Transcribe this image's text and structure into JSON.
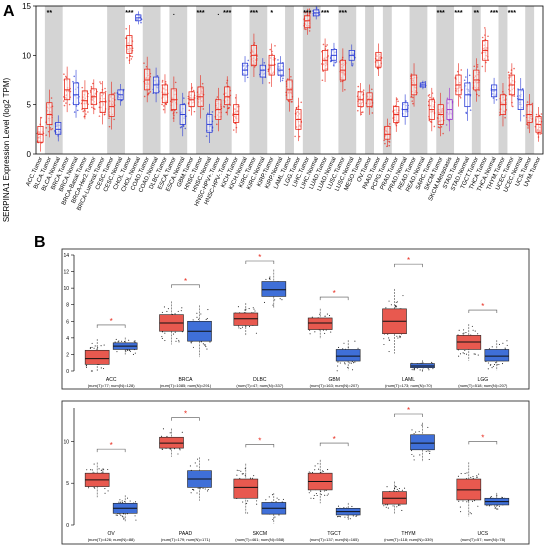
{
  "panel_a_label": "A",
  "panel_b_label": "B",
  "chart_data": [
    {
      "type": "box",
      "panel": "A",
      "title": "",
      "xlabel": "",
      "ylabel": "SERPINA1 Expression Level (log2 TPM)",
      "ylim": [
        0,
        15
      ],
      "yticks": [
        0,
        5,
        10,
        15
      ],
      "grid": false,
      "shaded_bands": true,
      "series": [
        {
          "name": "Tumor",
          "color": "#e8291c"
        },
        {
          "name": "Normal",
          "color": "#2a3cd6"
        },
        {
          "name": "Metastasis",
          "color": "#9b32d3"
        }
      ],
      "categories": [
        {
          "label": "ACC.Tumor",
          "kind": "tumor",
          "median": 2.0,
          "q1": 1.2,
          "q3": 2.8,
          "sig": ""
        },
        {
          "label": "BLCA.Tumor",
          "kind": "tumor",
          "median": 4.0,
          "q1": 3.0,
          "q3": 5.2,
          "sig": "**"
        },
        {
          "label": "BLCA.Normal",
          "kind": "normal",
          "median": 2.5,
          "q1": 2.0,
          "q3": 3.2,
          "sig": ""
        },
        {
          "label": "BRCA.Tumor",
          "kind": "tumor",
          "median": 6.5,
          "q1": 5.5,
          "q3": 7.6,
          "sig": ""
        },
        {
          "label": "BRCA.Normal",
          "kind": "normal",
          "median": 6.0,
          "q1": 5.0,
          "q3": 7.2,
          "sig": ""
        },
        {
          "label": "BRCA-Basal.Tumor",
          "kind": "tumor",
          "median": 5.4,
          "q1": 4.6,
          "q3": 6.4,
          "sig": ""
        },
        {
          "label": "BRCA-Her2.Tumor",
          "kind": "tumor",
          "median": 5.8,
          "q1": 5.0,
          "q3": 6.6,
          "sig": ""
        },
        {
          "label": "BRCA-Luminal.Tumor",
          "kind": "tumor",
          "median": 5.3,
          "q1": 4.2,
          "q3": 6.2,
          "sig": ""
        },
        {
          "label": "CESC.Tumor",
          "kind": "tumor",
          "median": 4.8,
          "q1": 3.8,
          "q3": 6.0,
          "sig": ""
        },
        {
          "label": "CESC.Normal",
          "kind": "normal",
          "median": 6.0,
          "q1": 5.5,
          "q3": 6.5,
          "sig": ""
        },
        {
          "label": "CHOL.Tumor",
          "kind": "tumor",
          "median": 11.0,
          "q1": 10.2,
          "q3": 12.0,
          "sig": "***"
        },
        {
          "label": "CHOL.Normal",
          "kind": "normal",
          "median": 13.8,
          "q1": 13.5,
          "q3": 14.1,
          "sig": ""
        },
        {
          "label": "COAD.Tumor",
          "kind": "tumor",
          "median": 7.5,
          "q1": 6.5,
          "q3": 8.6,
          "sig": ""
        },
        {
          "label": "COAD.Normal",
          "kind": "normal",
          "median": 7.0,
          "q1": 6.2,
          "q3": 7.8,
          "sig": ""
        },
        {
          "label": "DLBC.Tumor",
          "kind": "tumor",
          "median": 6.0,
          "q1": 5.2,
          "q3": 7.0,
          "sig": ""
        },
        {
          "label": "ESCA.Tumor",
          "kind": "tumor",
          "median": 5.5,
          "q1": 4.5,
          "q3": 6.6,
          "sig": "."
        },
        {
          "label": "ESCA.Normal",
          "kind": "normal",
          "median": 4.0,
          "q1": 3.0,
          "q3": 5.0,
          "sig": ""
        },
        {
          "label": "GBM.Tumor",
          "kind": "tumor",
          "median": 5.5,
          "q1": 4.8,
          "q3": 6.3,
          "sig": ""
        },
        {
          "label": "HNSC.Tumor",
          "kind": "tumor",
          "median": 5.8,
          "q1": 4.8,
          "q3": 6.8,
          "sig": "***"
        },
        {
          "label": "HNSC.Normal",
          "kind": "normal",
          "median": 3.0,
          "q1": 2.2,
          "q3": 4.0,
          "sig": ""
        },
        {
          "label": "HNSC-HPV+.Tumor",
          "kind": "tumor",
          "median": 4.5,
          "q1": 3.5,
          "q3": 5.5,
          "sig": "."
        },
        {
          "label": "HNSC-HPV-.Tumor",
          "kind": "tumor",
          "median": 5.8,
          "q1": 5.0,
          "q3": 6.8,
          "sig": "***"
        },
        {
          "label": "KICH.Tumor",
          "kind": "tumor",
          "median": 4.0,
          "q1": 3.2,
          "q3": 5.0,
          "sig": ""
        },
        {
          "label": "KICH.Normal",
          "kind": "normal",
          "median": 8.5,
          "q1": 8.0,
          "q3": 9.2,
          "sig": ""
        },
        {
          "label": "KIRC.Tumor",
          "kind": "tumor",
          "median": 10.0,
          "q1": 9.0,
          "q3": 11.0,
          "sig": "***"
        },
        {
          "label": "KIRC.Normal",
          "kind": "normal",
          "median": 8.5,
          "q1": 7.8,
          "q3": 9.0,
          "sig": ""
        },
        {
          "label": "KIRP.Tumor",
          "kind": "tumor",
          "median": 9.0,
          "q1": 8.0,
          "q3": 10.0,
          "sig": "*"
        },
        {
          "label": "KIRP.Normal",
          "kind": "normal",
          "median": 8.5,
          "q1": 8.0,
          "q3": 9.2,
          "sig": ""
        },
        {
          "label": "LAML.Tumor",
          "kind": "tumor",
          "median": 6.5,
          "q1": 5.5,
          "q3": 7.5,
          "sig": ""
        },
        {
          "label": "LGG.Tumor",
          "kind": "tumor",
          "median": 3.5,
          "q1": 2.5,
          "q3": 4.5,
          "sig": ""
        },
        {
          "label": "LIHC.Tumor",
          "kind": "tumor",
          "median": 13.5,
          "q1": 12.8,
          "q3": 14.0,
          "sig": "***"
        },
        {
          "label": "LIHC.Normal",
          "kind": "normal",
          "median": 14.3,
          "q1": 14.0,
          "q3": 14.6,
          "sig": ""
        },
        {
          "label": "LUAD.Tumor",
          "kind": "tumor",
          "median": 9.5,
          "q1": 8.5,
          "q3": 10.5,
          "sig": "***"
        },
        {
          "label": "LUAD.Normal",
          "kind": "normal",
          "median": 10.0,
          "q1": 9.5,
          "q3": 10.6,
          "sig": ""
        },
        {
          "label": "LUSC.Tumor",
          "kind": "tumor",
          "median": 8.5,
          "q1": 7.5,
          "q3": 9.5,
          "sig": "***"
        },
        {
          "label": "LUSC.Normal",
          "kind": "normal",
          "median": 10.0,
          "q1": 9.5,
          "q3": 10.5,
          "sig": ""
        },
        {
          "label": "MESO.Tumor",
          "kind": "tumor",
          "median": 5.5,
          "q1": 4.8,
          "q3": 6.3,
          "sig": ""
        },
        {
          "label": "OV.Tumor",
          "kind": "tumor",
          "median": 5.5,
          "q1": 4.8,
          "q3": 6.2,
          "sig": ""
        },
        {
          "label": "PAAD.Tumor",
          "kind": "tumor",
          "median": 9.5,
          "q1": 8.8,
          "q3": 10.3,
          "sig": ""
        },
        {
          "label": "PCPG.Tumor",
          "kind": "tumor",
          "median": 2.0,
          "q1": 1.5,
          "q3": 2.8,
          "sig": ""
        },
        {
          "label": "PRAD.Tumor",
          "kind": "tumor",
          "median": 4.0,
          "q1": 3.2,
          "q3": 4.8,
          "sig": ""
        },
        {
          "label": "PRAD.Normal",
          "kind": "normal",
          "median": 4.5,
          "q1": 3.8,
          "q3": 5.2,
          "sig": ""
        },
        {
          "label": "READ.Tumor",
          "kind": "tumor",
          "median": 7.0,
          "q1": 6.0,
          "q3": 8.0,
          "sig": ""
        },
        {
          "label": "READ.Normal",
          "kind": "normal",
          "median": 7.0,
          "q1": 6.8,
          "q3": 7.2,
          "sig": ""
        },
        {
          "label": "SARC.Tumor",
          "kind": "tumor",
          "median": 4.5,
          "q1": 3.5,
          "q3": 5.5,
          "sig": ""
        },
        {
          "label": "SKCM.Tumor",
          "kind": "tumor",
          "median": 4.0,
          "q1": 3.0,
          "q3": 5.0,
          "sig": "***"
        },
        {
          "label": "SKCM.Metastasis",
          "kind": "metastasis",
          "median": 4.5,
          "q1": 3.5,
          "q3": 5.5,
          "sig": ""
        },
        {
          "label": "STAD.Tumor",
          "kind": "tumor",
          "median": 7.0,
          "q1": 6.0,
          "q3": 8.0,
          "sig": "***"
        },
        {
          "label": "STAD.Normal",
          "kind": "normal",
          "median": 6.0,
          "q1": 4.8,
          "q3": 7.2,
          "sig": ""
        },
        {
          "label": "TGCT.Tumor",
          "kind": "tumor",
          "median": 7.5,
          "q1": 6.5,
          "q3": 8.5,
          "sig": "**"
        },
        {
          "label": "THCA.Tumor",
          "kind": "tumor",
          "median": 10.5,
          "q1": 9.5,
          "q3": 11.5,
          "sig": ""
        },
        {
          "label": "THCA.Normal",
          "kind": "normal",
          "median": 6.5,
          "q1": 5.8,
          "q3": 7.0,
          "sig": "***"
        },
        {
          "label": "THYM.Tumor",
          "kind": "tumor",
          "median": 5.0,
          "q1": 4.0,
          "q3": 6.0,
          "sig": ""
        },
        {
          "label": "UCEC.Tumor",
          "kind": "tumor",
          "median": 7.0,
          "q1": 6.0,
          "q3": 8.0,
          "sig": "***"
        },
        {
          "label": "UCEC.Normal",
          "kind": "normal",
          "median": 5.5,
          "q1": 4.5,
          "q3": 6.5,
          "sig": ""
        },
        {
          "label": "UCS.Tumor",
          "kind": "tumor",
          "median": 4.0,
          "q1": 3.2,
          "q3": 5.0,
          "sig": ""
        },
        {
          "label": "UVM.Tumor",
          "kind": "tumor",
          "median": 3.0,
          "q1": 2.2,
          "q3": 3.8,
          "sig": ""
        }
      ]
    },
    {
      "type": "box",
      "panel": "B-top",
      "title": "",
      "ylim": [
        0,
        14
      ],
      "yticks": [
        0,
        2,
        4,
        6,
        8,
        10,
        12,
        14
      ],
      "grid": false,
      "series": [
        {
          "name": "Tumor",
          "color": "#e8594f"
        },
        {
          "name": "Normal",
          "color": "#3f6fd8"
        }
      ],
      "groups": [
        {
          "name": "ACC",
          "caption": "(num(T)=77; num(N)=128)",
          "tumor": {
            "median": 1.5,
            "q1": 0.8,
            "q3": 2.5
          },
          "normal": {
            "median": 3.0,
            "q1": 2.6,
            "q3": 3.4
          },
          "star": "*"
        },
        {
          "name": "BRCA",
          "caption": "(num(T)=1085; num(N)=291)",
          "tumor": {
            "median": 5.8,
            "q1": 4.8,
            "q3": 6.8
          },
          "normal": {
            "median": 4.8,
            "q1": 3.6,
            "q3": 6.0
          },
          "star": "*"
        },
        {
          "name": "DLBC",
          "caption": "(num(T)=47; num(N)=337)",
          "tumor": {
            "median": 6.3,
            "q1": 5.5,
            "q3": 7.0
          },
          "normal": {
            "median": 9.8,
            "q1": 9.0,
            "q3": 10.8
          },
          "star": "*"
        },
        {
          "name": "GBM",
          "caption": "(num(T)=163; num(N)=207)",
          "tumor": {
            "median": 5.8,
            "q1": 5.0,
            "q3": 6.4
          },
          "normal": {
            "median": 1.8,
            "q1": 1.2,
            "q3": 2.6
          },
          "star": "*"
        },
        {
          "name": "LAML",
          "caption": "(num(T)=173; num(N)=70)",
          "tumor": {
            "median": 6.0,
            "q1": 4.5,
            "q3": 7.5
          },
          "normal": {
            "median": 0.6,
            "q1": 0.4,
            "q3": 0.9
          },
          "star": "*"
        },
        {
          "name": "LGG",
          "caption": "(num(T)=518; num(N)=207)",
          "tumor": {
            "median": 3.5,
            "q1": 2.6,
            "q3": 4.3
          },
          "normal": {
            "median": 1.8,
            "q1": 1.2,
            "q3": 2.6
          },
          "star": "*"
        }
      ]
    },
    {
      "type": "box",
      "panel": "B-bottom",
      "title": "",
      "ylim": [
        0,
        14
      ],
      "yticks": [
        0,
        5,
        10
      ],
      "grid": false,
      "series": [
        {
          "name": "Tumor",
          "color": "#e8594f"
        },
        {
          "name": "Normal",
          "color": "#3f6fd8"
        }
      ],
      "groups": [
        {
          "name": "OV",
          "caption": "(num(T)=426; num(N)=88)",
          "tumor": {
            "median": 5.4,
            "q1": 4.6,
            "q3": 6.2
          },
          "normal": {
            "median": 2.0,
            "q1": 1.4,
            "q3": 2.6
          },
          "star": "*"
        },
        {
          "name": "PAAD",
          "caption": "(num(T)=179; num(N)=171)",
          "tumor": {
            "median": 9.8,
            "q1": 9.2,
            "q3": 10.5
          },
          "normal": {
            "median": 5.5,
            "q1": 4.5,
            "q3": 6.5
          },
          "star": "*"
        },
        {
          "name": "SKCM",
          "caption": "(num(T)=461; num(N)=558)",
          "tumor": {
            "median": 4.5,
            "q1": 3.2,
            "q3": 5.5
          },
          "normal": {
            "median": 2.0,
            "q1": 1.3,
            "q3": 2.7
          },
          "star": "*"
        },
        {
          "name": "TGCT",
          "caption": "(num(T)=137; num(N)=165)",
          "tumor": {
            "median": 5.2,
            "q1": 4.2,
            "q3": 6.2
          },
          "normal": {
            "median": 1.6,
            "q1": 1.2,
            "q3": 2.0
          },
          "star": "*"
        },
        {
          "name": "THYM",
          "caption": "(num(T)=118; num(N)=339)",
          "tumor": {
            "median": 3.2,
            "q1": 2.5,
            "q3": 4.0
          },
          "normal": {
            "median": 9.8,
            "q1": 9.0,
            "q3": 10.8
          },
          "star": "*"
        },
        {
          "name": "UCS",
          "caption": "(num(T)=57; num(N)=78)",
          "tumor": {
            "median": 4.2,
            "q1": 3.0,
            "q3": 5.5
          },
          "normal": {
            "median": 2.8,
            "q1": 2.4,
            "q3": 3.2
          },
          "star": "*"
        }
      ]
    }
  ]
}
